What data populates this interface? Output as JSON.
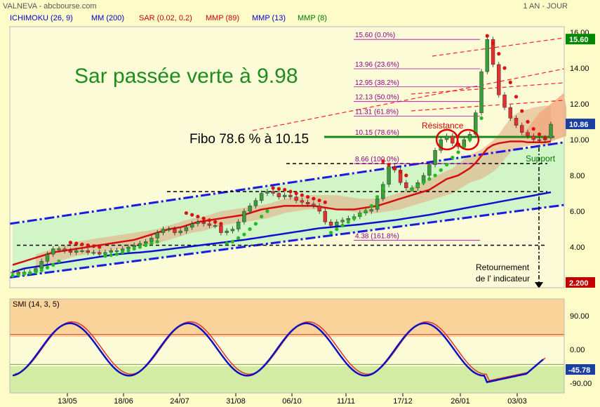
{
  "header": {
    "source": "VALNEVA - abcbourse.com",
    "period": "1 AN - JOUR"
  },
  "indicators": [
    {
      "label": "ICHIMOKU (26, 9)",
      "color": "#0000cc"
    },
    {
      "label": "MM (200)",
      "color": "#0000cc"
    },
    {
      "label": "SAR (0.02, 0.2)",
      "color": "#cc0000"
    },
    {
      "label": "MMP (89)",
      "color": "#cc0000"
    },
    {
      "label": "MMP (13)",
      "color": "#0000cc"
    },
    {
      "label": "MMP (8)",
      "color": "#007700"
    }
  ],
  "annotations": {
    "sar_title": "Sar passée verte à 9.98",
    "fibo_label": "Fibo 78.6 % à 10.15",
    "resistance": "Résistance",
    "support": "Support",
    "reversal_line1": "Retournement",
    "reversal_line2": "de l' indicateur"
  },
  "chart_data": [
    {
      "type": "line",
      "name": "price",
      "x_ticks": [
        "13/05",
        "18/06",
        "24/07",
        "31/08",
        "06/10",
        "11/11",
        "17/12",
        "26/01",
        "03/03"
      ],
      "y_ticks": [
        4.0,
        6.0,
        8.0,
        10.0,
        12.0,
        14.0,
        16.0
      ],
      "ylim": [
        2.2,
        16.4
      ],
      "fibonacci": [
        {
          "label": "15.60 (0.0%)",
          "value": 15.6
        },
        {
          "label": "13.96 (23.6%)",
          "value": 13.96
        },
        {
          "label": "12.95 (38.2%)",
          "value": 12.95
        },
        {
          "label": "12.13 (50.0%)",
          "value": 12.13
        },
        {
          "label": "11.31 (61.8%)",
          "value": 11.31
        },
        {
          "label": "10.15 (78.6%)",
          "value": 10.15
        },
        {
          "label": "8.66 (100.0%)",
          "value": 8.66
        },
        {
          "label": "4.38 (161.8%)",
          "value": 4.38
        }
      ],
      "price_labels": [
        {
          "label": "15.60",
          "value": 15.6,
          "color": "#008800"
        },
        {
          "label": "10.86",
          "value": 10.86,
          "color": "#1a3fa0"
        },
        {
          "label": "2.200",
          "value": 2.2,
          "color": "#c40000"
        }
      ],
      "close": [
        2.6,
        2.5,
        2.6,
        2.6,
        2.8,
        3.2,
        3.6,
        3.9,
        3.9,
        3.8,
        3.7,
        3.8,
        3.8,
        3.7,
        3.7,
        3.6,
        3.7,
        3.8,
        3.8,
        3.9,
        4.0,
        4.1,
        4.2,
        4.3,
        4.5,
        4.8,
        5.0,
        5.0,
        4.8,
        4.9,
        5.1,
        5.3,
        5.4,
        5.3,
        5.2,
        5.2,
        4.8,
        4.9,
        5.0,
        5.4,
        6.0,
        6.3,
        6.6,
        7.0,
        7.1,
        7.0,
        6.8,
        6.9,
        6.8,
        6.6,
        6.5,
        6.4,
        6.3,
        6.0,
        5.4,
        5.2,
        5.4,
        5.5,
        5.6,
        5.7,
        5.9,
        6.0,
        6.1,
        6.7,
        7.5,
        8.5,
        8.3,
        7.6,
        7.3,
        7.3,
        7.6,
        8.0,
        8.6,
        9.4,
        10.0,
        10.2,
        9.8,
        9.6,
        10.0,
        10.3,
        11.5,
        13.8,
        15.6,
        14.2,
        12.5,
        11.8,
        11.2,
        10.8,
        10.4,
        10.2,
        10.0,
        9.98,
        10.1,
        10.86
      ],
      "sar_up": [
        {
          "start": 0,
          "values": [
            2.4,
            2.45,
            2.5,
            2.55,
            2.6,
            2.7,
            2.85,
            3.0,
            3.2
          ]
        },
        {
          "start": 16,
          "values": [
            3.5,
            3.55,
            3.6,
            3.7,
            3.8,
            3.9,
            4.0,
            4.1,
            4.2,
            4.3
          ]
        },
        {
          "start": 37,
          "values": [
            4.2,
            4.3,
            4.5,
            4.7,
            5.0,
            5.3,
            5.7,
            6.0
          ]
        },
        {
          "start": 55,
          "values": [
            4.8,
            5.0,
            5.2,
            5.4,
            5.6,
            5.8,
            6.0,
            6.3,
            6.8,
            7.3
          ]
        },
        {
          "start": 69,
          "values": [
            7.2,
            7.4,
            7.6,
            7.8,
            8.0,
            8.3,
            8.6,
            9.0,
            9.3,
            9.6,
            10.0,
            10.5,
            11.2
          ]
        }
      ],
      "sar_down": [
        {
          "start": 10,
          "values": [
            4.25,
            4.2,
            4.15,
            4.1,
            4.05,
            4.0
          ]
        },
        {
          "start": 30,
          "values": [
            5.9,
            5.8,
            5.7,
            5.6,
            5.5,
            5.4,
            5.3
          ]
        },
        {
          "start": 45,
          "values": [
            7.3,
            7.25,
            7.2,
            7.1,
            7.0,
            6.9,
            6.8,
            6.7,
            6.6,
            6.5
          ]
        },
        {
          "start": 64,
          "values": [
            8.8,
            8.6,
            8.4,
            8.2,
            8.0
          ]
        },
        {
          "start": 82,
          "values": [
            15.8,
            15.4,
            14.8,
            14.0,
            13.2,
            12.4,
            11.6,
            11.0,
            10.6,
            10.3,
            10.1
          ]
        }
      ],
      "mmp89": [
        3.0,
        3.1,
        3.2,
        3.3,
        3.4,
        3.5,
        3.6,
        3.7,
        3.75,
        3.8,
        3.85,
        3.9,
        3.95,
        4.0,
        4.05,
        4.1,
        4.15,
        4.2,
        4.25,
        4.3,
        4.35,
        4.4,
        4.5,
        4.6,
        4.7,
        4.8,
        4.9,
        5.0,
        5.05,
        5.1,
        5.2,
        5.3,
        5.4,
        5.45,
        5.5,
        5.55,
        5.6,
        5.65,
        5.7,
        5.75,
        5.8,
        5.9,
        6.0,
        6.1,
        6.15,
        6.2,
        6.25,
        6.3,
        6.3,
        6.3,
        6.3,
        6.3,
        6.3,
        6.25,
        6.2,
        6.15,
        6.1,
        6.1,
        6.1,
        6.1,
        6.15,
        6.2,
        6.25,
        6.3,
        6.4,
        6.5,
        6.6,
        6.7,
        6.8,
        6.9,
        7.0,
        7.1,
        7.2,
        7.4,
        7.6,
        7.8,
        7.9,
        8.0,
        8.2,
        8.4,
        8.7,
        9.1,
        9.5,
        9.7,
        9.8,
        9.85,
        9.9,
        9.9,
        9.9,
        9.85,
        9.85,
        9.85,
        9.85,
        9.9
      ],
      "mm200": [
        2.6,
        2.7,
        2.8,
        2.85,
        2.9,
        2.95,
        3.0,
        3.05,
        3.1,
        3.15,
        3.2,
        3.25,
        3.3,
        3.35,
        3.4,
        3.45,
        3.5,
        3.55,
        3.6,
        3.62,
        3.65,
        3.68,
        3.7,
        3.73,
        3.76,
        3.8,
        3.84,
        3.88,
        3.92,
        3.96,
        4.0,
        4.04,
        4.08,
        4.12,
        4.16,
        4.2,
        4.24,
        4.28,
        4.32,
        4.36,
        4.4,
        4.45,
        4.5,
        4.55,
        4.6,
        4.65,
        4.7,
        4.75,
        4.8,
        4.85,
        4.9,
        4.95,
        5.0,
        5.05,
        5.08,
        5.11,
        5.14,
        5.17,
        5.2,
        5.23,
        5.26,
        5.3,
        5.34,
        5.38,
        5.42,
        5.46,
        5.5,
        5.55,
        5.6,
        5.65,
        5.7,
        5.75,
        5.8,
        5.86,
        5.92,
        5.98,
        6.04,
        6.1,
        6.16,
        6.22,
        6.28,
        6.34,
        6.4,
        6.46,
        6.52,
        6.58,
        6.64,
        6.7,
        6.76,
        6.82,
        6.88,
        6.94,
        7.0,
        7.06
      ],
      "channel_upper": {
        "start_value": 5.3,
        "end_value": 9.85
      },
      "channel_lower": {
        "start_value": 2.3,
        "end_value": 6.35
      },
      "horizontal_dashed": [
        8.66,
        7.1,
        4.1
      ],
      "sma_smi": {
        "name": "SMI (14, 3, 5)",
        "y_ticks": [
          90.0,
          0.0,
          -90.0
        ],
        "ylim": [
          -105,
          110
        ],
        "last_label": "-45.78",
        "overbought": 40,
        "oversold": -40
      }
    }
  ]
}
